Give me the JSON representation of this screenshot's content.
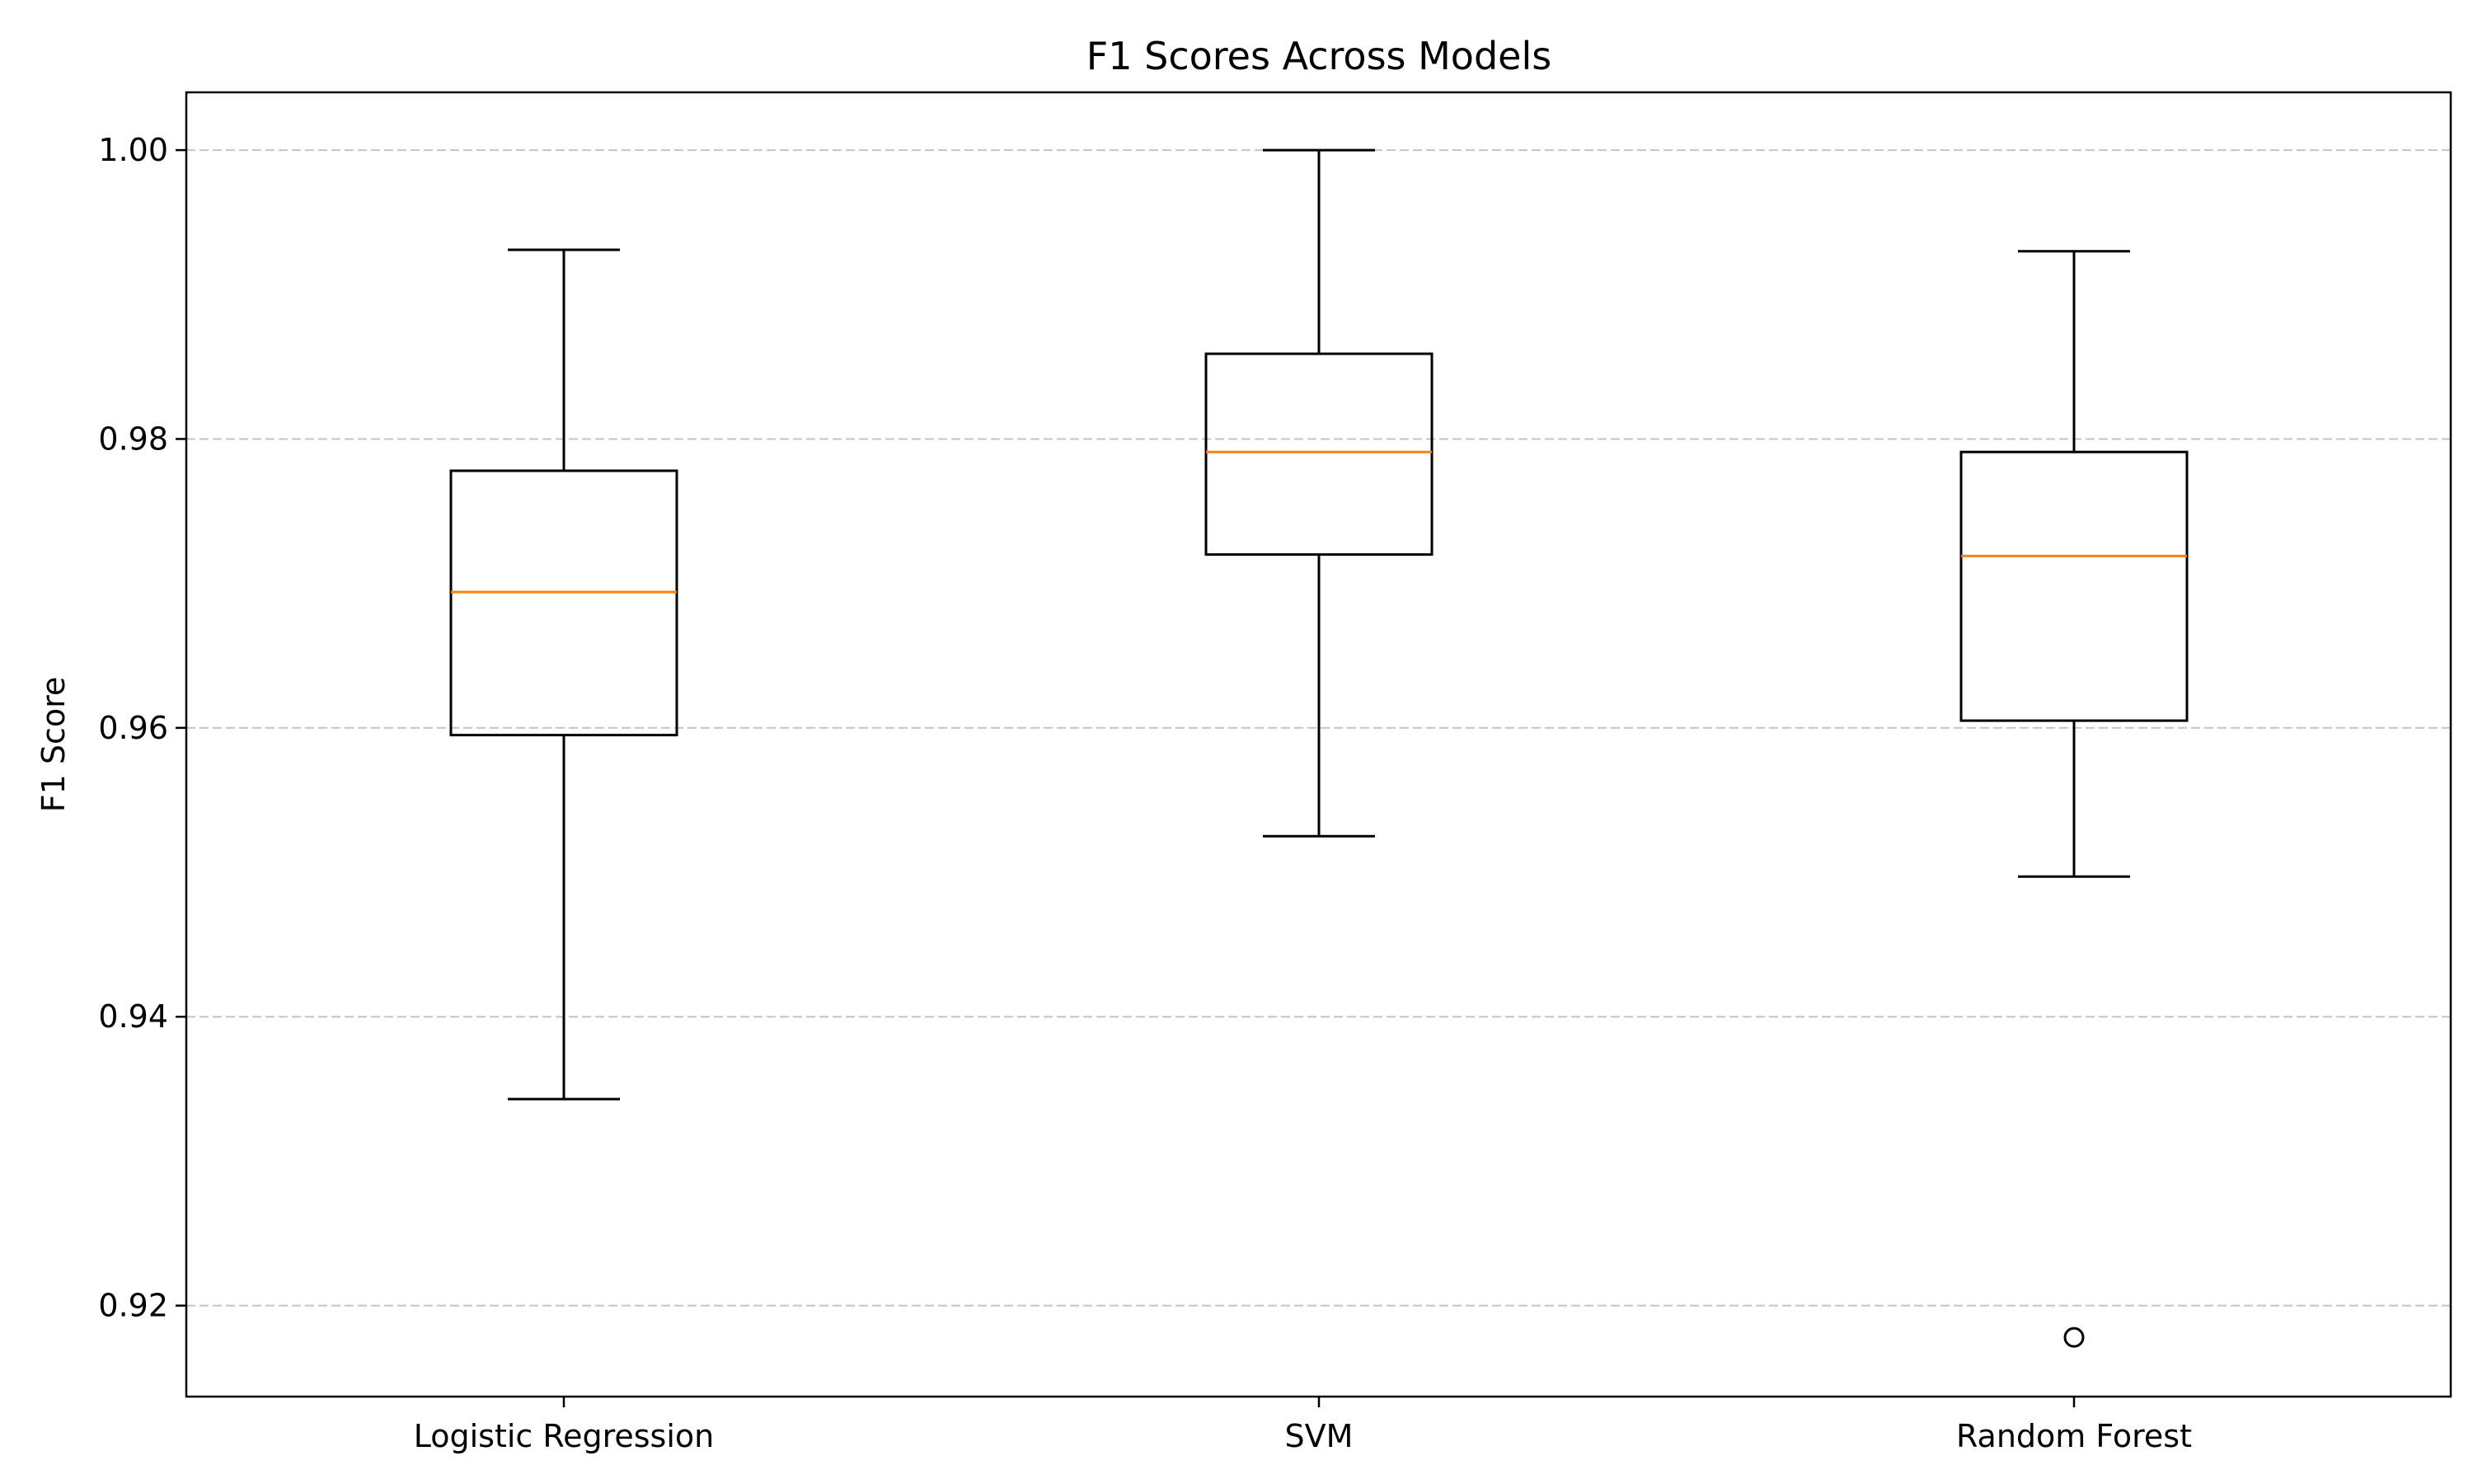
{
  "chart_data": {
    "type": "box",
    "title": "F1 Scores Across Models",
    "xlabel": "",
    "ylabel": "F1 Score",
    "ylim": [
      0.9137,
      1.004
    ],
    "yticks": [
      0.92,
      0.94,
      0.96,
      0.98,
      1.0
    ],
    "ytick_labels": [
      "0.92",
      "0.94",
      "0.96",
      "0.98",
      "1.00"
    ],
    "grid": {
      "axis": "y",
      "style": "dashed"
    },
    "categories": [
      "Logistic Regression",
      "SVM",
      "Random Forest"
    ],
    "boxes": [
      {
        "name": "Logistic Regression",
        "whisker_low": 0.9343,
        "q1": 0.9595,
        "median": 0.9694,
        "q3": 0.9778,
        "whisker_high": 0.9931,
        "outliers": []
      },
      {
        "name": "SVM",
        "whisker_low": 0.9525,
        "q1": 0.972,
        "median": 0.9791,
        "q3": 0.9859,
        "whisker_high": 1.0,
        "outliers": []
      },
      {
        "name": "Random Forest",
        "whisker_low": 0.9497,
        "q1": 0.9605,
        "median": 0.9719,
        "q3": 0.9791,
        "whisker_high": 0.993,
        "outliers": [
          0.9178
        ]
      }
    ],
    "colors": {
      "box": "#000000",
      "median": "#ff7f0e",
      "grid": "#b0b0b0"
    }
  }
}
